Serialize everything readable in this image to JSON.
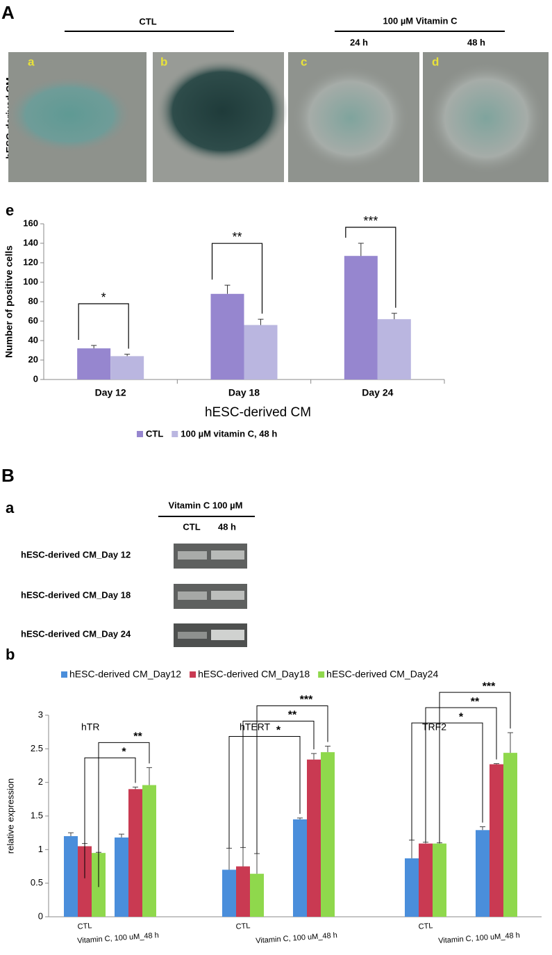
{
  "panel_A": {
    "label": "A",
    "ctl_label": "CTL",
    "treat_label": "100 µM Vitamin C",
    "time_labels": [
      "24 h",
      "48 h"
    ],
    "row_label": "hESC-derived CM",
    "image_labels": [
      "a",
      "b",
      "c",
      "d"
    ]
  },
  "panel_B": {
    "label": "B",
    "sub_label": "a",
    "gel_header": "Vitamin C 100 µM",
    "gel_columns": [
      "CTL",
      "48 h"
    ],
    "gel_rows": [
      "hESC-derived CM_Day 12",
      "hESC-derived CM_Day 18",
      "hESC-derived CM_Day 24"
    ]
  },
  "chart_data": [
    {
      "type": "bar",
      "panel_label": "e",
      "x_label": "hESC-derived CM",
      "y_label": "Number of positive cells",
      "categories": [
        "Day 12",
        "Day 18",
        "Day 24"
      ],
      "series": [
        {
          "name": "CTL",
          "color": "#9686cf",
          "values": [
            32,
            88,
            127
          ],
          "errors": [
            3,
            9,
            13
          ]
        },
        {
          "name": "100 µM vitamin C, 48 h",
          "color": "#bab6e0",
          "values": [
            24,
            56,
            62
          ],
          "errors": [
            2,
            6,
            6
          ]
        }
      ],
      "significance": [
        "*",
        "**",
        "***"
      ],
      "ylim": [
        0,
        160
      ],
      "yticks": [
        0,
        20,
        40,
        60,
        80,
        100,
        120,
        140,
        160
      ],
      "grid": false
    },
    {
      "type": "grouped-bar",
      "panel_label": "b",
      "y_label": "relative expression",
      "groups": [
        "hTR",
        "hTERT",
        "TRF2"
      ],
      "categories": [
        "CTL",
        "Vitamin C, 100 uM_48 h",
        "CTL",
        "Vitamin C, 100 uM_48 h",
        "CTL",
        "Vitamin C, 100 uM_48 h"
      ],
      "series": [
        {
          "name": "hESC-derived CM_Day12",
          "color": "#4a8edb",
          "values": [
            1.2,
            1.18,
            0.7,
            1.45,
            0.87,
            1.29
          ],
          "errors": [
            0.05,
            0.05,
            0.32,
            0.02,
            0.27,
            0.05
          ]
        },
        {
          "name": "hESC-derived CM_Day18",
          "color": "#c93a52",
          "values": [
            1.05,
            1.9,
            0.75,
            2.34,
            1.09,
            2.27
          ],
          "errors": [
            0.04,
            0.03,
            0.28,
            0.09,
            0.02,
            0.01
          ]
        },
        {
          "name": "hESC-derived CM_Day24",
          "color": "#8fd84c",
          "values": [
            0.95,
            1.96,
            0.64,
            2.45,
            1.09,
            2.44
          ],
          "errors": [
            0.01,
            0.26,
            0.3,
            0.09,
            0.01,
            0.3
          ]
        }
      ],
      "significance": [
        [
          null,
          "*",
          "**"
        ],
        [
          "*",
          "**",
          "***"
        ],
        [
          "*",
          "**",
          "***"
        ]
      ],
      "ylim": [
        0,
        3
      ],
      "yticks": [
        0,
        0.5,
        1,
        1.5,
        2,
        2.5,
        3
      ],
      "grid": false
    }
  ]
}
